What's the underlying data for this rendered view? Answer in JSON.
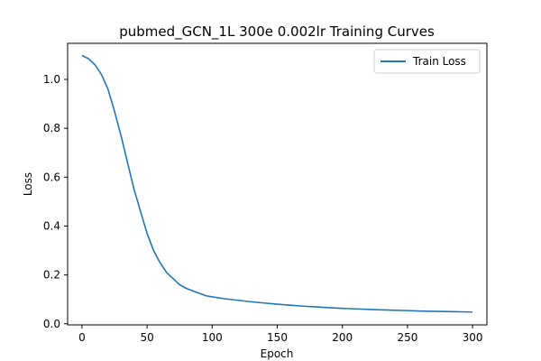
{
  "chart_data": {
    "type": "line",
    "title": "pubmed_GCN_1L  300e  0.002lr  Training Curves",
    "xlabel": "Epoch",
    "ylabel": "Loss",
    "xlim": [
      -11,
      311
    ],
    "ylim": [
      -0.0046,
      1.1478
    ],
    "xticks": [
      0,
      50,
      100,
      150,
      200,
      250,
      300
    ],
    "yticks": [
      0.0,
      0.2,
      0.4,
      0.6,
      0.8,
      1.0
    ],
    "ytick_labels": [
      "0.0",
      "0.2",
      "0.4",
      "0.6",
      "0.8",
      "1.0"
    ],
    "grid": false,
    "legend": "top-right",
    "color": "#1f77b4",
    "series": [
      {
        "name": "Train Loss",
        "x": [
          0,
          5,
          10,
          15,
          20,
          25,
          30,
          35,
          40,
          45,
          50,
          55,
          60,
          65,
          70,
          75,
          80,
          85,
          90,
          95,
          100,
          110,
          120,
          130,
          140,
          150,
          160,
          170,
          180,
          190,
          200,
          210,
          220,
          230,
          240,
          250,
          260,
          270,
          280,
          290,
          300
        ],
        "y": [
          1.098,
          1.085,
          1.06,
          1.02,
          0.96,
          0.87,
          0.77,
          0.66,
          0.55,
          0.46,
          0.37,
          0.3,
          0.25,
          0.21,
          0.185,
          0.16,
          0.145,
          0.135,
          0.125,
          0.115,
          0.11,
          0.102,
          0.096,
          0.09,
          0.085,
          0.08,
          0.076,
          0.072,
          0.069,
          0.066,
          0.063,
          0.061,
          0.059,
          0.057,
          0.055,
          0.054,
          0.052,
          0.051,
          0.05,
          0.049,
          0.048
        ]
      }
    ]
  }
}
